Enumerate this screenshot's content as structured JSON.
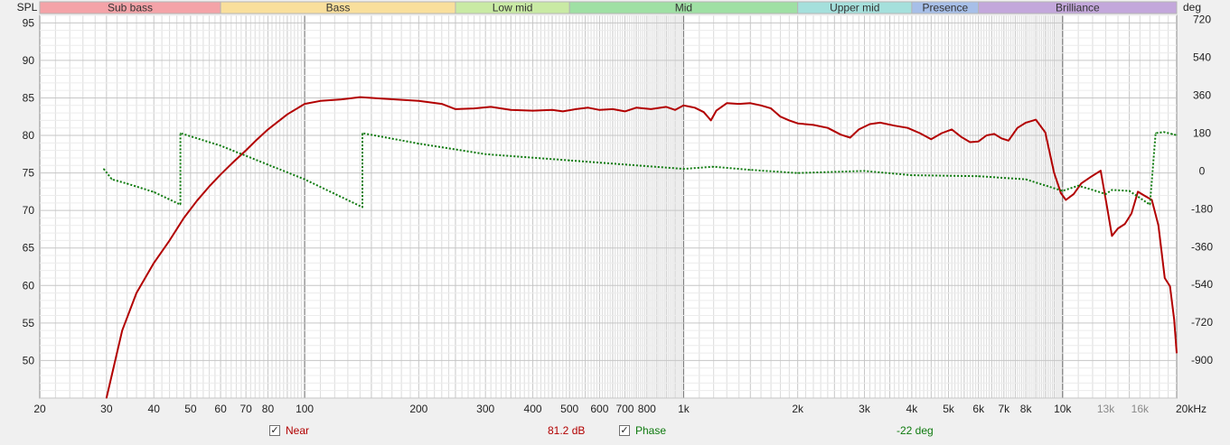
{
  "bands": [
    {
      "label": "Sub bass",
      "from": 20,
      "to": 60,
      "color": "#f4a3a8"
    },
    {
      "label": "Bass",
      "from": 60,
      "to": 250,
      "color": "#f9df9c"
    },
    {
      "label": "Low mid",
      "from": 250,
      "to": 500,
      "color": "#c9eaa4"
    },
    {
      "label": "Mid",
      "from": 500,
      "to": 2000,
      "color": "#9fe0a4"
    },
    {
      "label": "Upper mid",
      "from": 2000,
      "to": 4000,
      "color": "#a5e0dc"
    },
    {
      "label": "Presence",
      "from": 4000,
      "to": 6000,
      "color": "#a7bfe8"
    },
    {
      "label": "Brilliance",
      "from": 6000,
      "to": 20000,
      "color": "#c3a7db"
    }
  ],
  "legend": {
    "near_label": "Near",
    "near_value": "81.2 dB",
    "phase_label": "Phase",
    "phase_value": "-22 deg",
    "near_checked": "✓",
    "phase_checked": "✓"
  },
  "colors": {
    "spl": "#b20000",
    "phase": "#0e7a0e",
    "plot_bg": "#ffffff",
    "grid_minor": "#dcdcdc",
    "grid_major": "#7a7a7a"
  },
  "chart_data": {
    "type": "line",
    "x_scale": "log",
    "xlim": [
      20,
      20000
    ],
    "x_ticks": [
      {
        "v": 20,
        "label": "20"
      },
      {
        "v": 30,
        "label": "30"
      },
      {
        "v": 40,
        "label": "40"
      },
      {
        "v": 50,
        "label": "50"
      },
      {
        "v": 60,
        "label": "60"
      },
      {
        "v": 70,
        "label": "70"
      },
      {
        "v": 80,
        "label": "80"
      },
      {
        "v": 100,
        "label": "100"
      },
      {
        "v": 200,
        "label": "200"
      },
      {
        "v": 300,
        "label": "300"
      },
      {
        "v": 400,
        "label": "400"
      },
      {
        "v": 500,
        "label": "500"
      },
      {
        "v": 600,
        "label": "600"
      },
      {
        "v": 700,
        "label": "700"
      },
      {
        "v": 800,
        "label": "800"
      },
      {
        "v": 1000,
        "label": "1k"
      },
      {
        "v": 2000,
        "label": "2k"
      },
      {
        "v": 3000,
        "label": "3k"
      },
      {
        "v": 4000,
        "label": "4k"
      },
      {
        "v": 5000,
        "label": "5k"
      },
      {
        "v": 6000,
        "label": "6k"
      },
      {
        "v": 7000,
        "label": "7k"
      },
      {
        "v": 8000,
        "label": "8k"
      },
      {
        "v": 10000,
        "label": "10k"
      },
      {
        "v": 13000,
        "label": "13k"
      },
      {
        "v": 16000,
        "label": "16k"
      },
      {
        "v": 20000,
        "label": "20kHz"
      }
    ],
    "left_axis": {
      "label": "SPL",
      "ylim": [
        45,
        96
      ],
      "ticks": [
        50,
        55,
        60,
        65,
        70,
        75,
        80,
        85,
        90,
        95
      ]
    },
    "right_axis": {
      "label": "deg",
      "ylim": [
        -1080,
        740
      ],
      "ticks": [
        -900,
        -720,
        -540,
        -360,
        -180,
        0,
        180,
        360,
        540,
        720
      ]
    },
    "series": [
      {
        "name": "Near",
        "axis": "left",
        "style": "solid",
        "points": [
          [
            30,
            45
          ],
          [
            33,
            54
          ],
          [
            36,
            59
          ],
          [
            40,
            63
          ],
          [
            44,
            66
          ],
          [
            48,
            69
          ],
          [
            52,
            71.3
          ],
          [
            56,
            73.2
          ],
          [
            60,
            74.8
          ],
          [
            65,
            76.5
          ],
          [
            70,
            78
          ],
          [
            75,
            79.5
          ],
          [
            80,
            80.8
          ],
          [
            90,
            82.8
          ],
          [
            100,
            84.2
          ],
          [
            110,
            84.6
          ],
          [
            125,
            84.8
          ],
          [
            140,
            85.1
          ],
          [
            160,
            84.9
          ],
          [
            200,
            84.6
          ],
          [
            230,
            84.2
          ],
          [
            250,
            83.5
          ],
          [
            280,
            83.6
          ],
          [
            310,
            83.8
          ],
          [
            350,
            83.4
          ],
          [
            400,
            83.3
          ],
          [
            450,
            83.4
          ],
          [
            480,
            83.2
          ],
          [
            520,
            83.5
          ],
          [
            560,
            83.7
          ],
          [
            600,
            83.4
          ],
          [
            650,
            83.5
          ],
          [
            700,
            83.2
          ],
          [
            750,
            83.7
          ],
          [
            820,
            83.5
          ],
          [
            900,
            83.8
          ],
          [
            950,
            83.4
          ],
          [
            1000,
            84
          ],
          [
            1070,
            83.7
          ],
          [
            1130,
            83.1
          ],
          [
            1180,
            82
          ],
          [
            1220,
            83.3
          ],
          [
            1300,
            84.3
          ],
          [
            1400,
            84.2
          ],
          [
            1500,
            84.3
          ],
          [
            1600,
            84
          ],
          [
            1700,
            83.6
          ],
          [
            1800,
            82.5
          ],
          [
            1900,
            82
          ],
          [
            2000,
            81.6
          ],
          [
            2200,
            81.4
          ],
          [
            2400,
            81
          ],
          [
            2600,
            80.1
          ],
          [
            2750,
            79.7
          ],
          [
            2900,
            80.8
          ],
          [
            3100,
            81.5
          ],
          [
            3300,
            81.7
          ],
          [
            3600,
            81.3
          ],
          [
            3900,
            81
          ],
          [
            4200,
            80.3
          ],
          [
            4500,
            79.5
          ],
          [
            4800,
            80.3
          ],
          [
            5100,
            80.8
          ],
          [
            5400,
            79.8
          ],
          [
            5700,
            79.1
          ],
          [
            6000,
            79.2
          ],
          [
            6300,
            80
          ],
          [
            6600,
            80.2
          ],
          [
            6900,
            79.6
          ],
          [
            7200,
            79.3
          ],
          [
            7600,
            81
          ],
          [
            8000,
            81.7
          ],
          [
            8500,
            82.1
          ],
          [
            9000,
            80.4
          ],
          [
            9500,
            75
          ],
          [
            9900,
            72.3
          ],
          [
            10200,
            71.4
          ],
          [
            10700,
            72.2
          ],
          [
            11200,
            73.6
          ],
          [
            11900,
            74.5
          ],
          [
            12600,
            75.3
          ],
          [
            13100,
            70.5
          ],
          [
            13500,
            66.6
          ],
          [
            14000,
            67.6
          ],
          [
            14600,
            68.2
          ],
          [
            15200,
            69.6
          ],
          [
            15800,
            72.5
          ],
          [
            16400,
            72
          ],
          [
            17200,
            71.4
          ],
          [
            17900,
            68
          ],
          [
            18600,
            61
          ],
          [
            19200,
            59.9
          ],
          [
            19700,
            55.5
          ],
          [
            20000,
            51
          ]
        ]
      },
      {
        "name": "Phase",
        "axis": "right",
        "style": "dotted",
        "points": [
          [
            29.5,
            10
          ],
          [
            31,
            -40
          ],
          [
            34,
            -60
          ],
          [
            40,
            -100
          ],
          [
            47,
            -160
          ],
          [
            47,
            180
          ],
          [
            60,
            120
          ],
          [
            80,
            30
          ],
          [
            100,
            -40
          ],
          [
            142,
            -172
          ],
          [
            142,
            180
          ],
          [
            200,
            130
          ],
          [
            300,
            80
          ],
          [
            500,
            50
          ],
          [
            1000,
            10
          ],
          [
            1200,
            20
          ],
          [
            1500,
            5
          ],
          [
            2000,
            -10
          ],
          [
            3000,
            0
          ],
          [
            4000,
            -20
          ],
          [
            6000,
            -25
          ],
          [
            8000,
            -40
          ],
          [
            10000,
            -95
          ],
          [
            11000,
            -70
          ],
          [
            12000,
            -90
          ],
          [
            13000,
            -110
          ],
          [
            13500,
            -90
          ],
          [
            15000,
            -95
          ],
          [
            17000,
            -160
          ],
          [
            17600,
            180
          ],
          [
            18500,
            185
          ],
          [
            19500,
            175
          ],
          [
            20000,
            170
          ]
        ]
      }
    ]
  }
}
